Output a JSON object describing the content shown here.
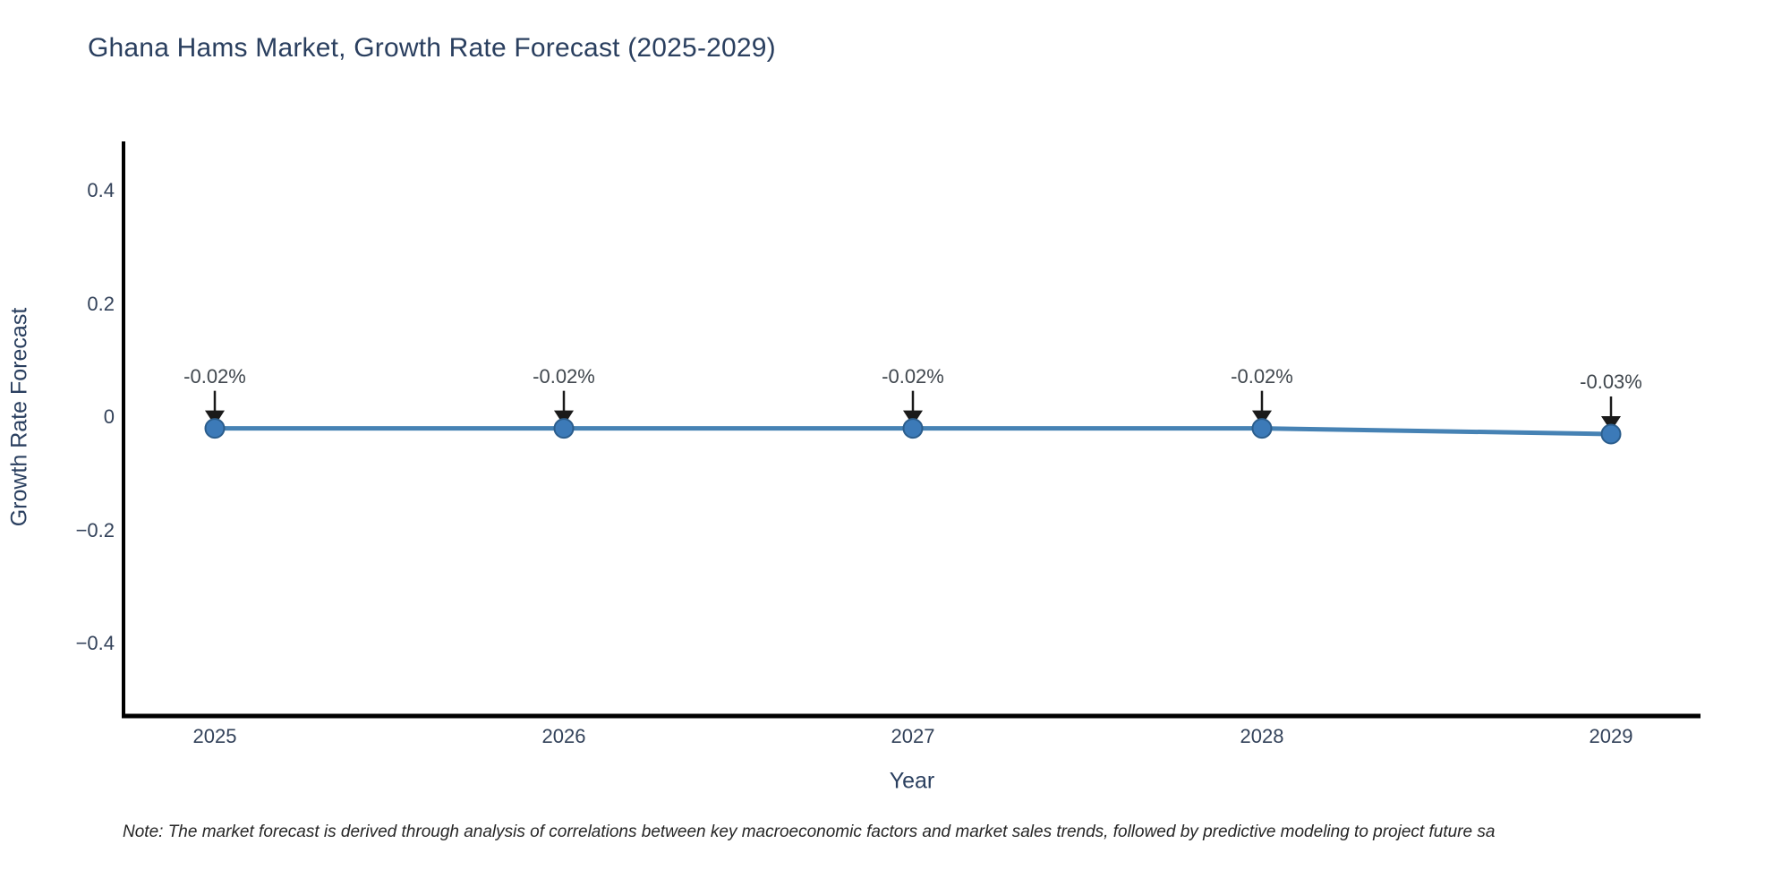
{
  "chart_data": {
    "type": "line",
    "title": "Ghana Hams Market, Growth Rate Forecast (2025-2029)",
    "xlabel": "Year",
    "ylabel": "Growth Rate Forecast",
    "x": [
      2025,
      2026,
      2027,
      2028,
      2029
    ],
    "categories": [
      "2025",
      "2026",
      "2027",
      "2028",
      "2029"
    ],
    "values": [
      -0.02,
      -0.02,
      -0.02,
      -0.02,
      -0.03
    ],
    "point_labels": [
      "-0.02%",
      "-0.02%",
      "-0.02%",
      "-0.02%",
      "-0.03%"
    ],
    "y_ticks": [
      0.4,
      0.2,
      0,
      -0.2,
      -0.4
    ],
    "y_tick_labels": [
      "0.4",
      "0.2",
      "0",
      "−0.2",
      "−0.4"
    ],
    "ylim": [
      -0.53,
      0.49
    ],
    "xlim": [
      2024.74,
      2029.26
    ],
    "grid": false,
    "legend": "none"
  },
  "note": {
    "text": "Note: The market forecast is derived through analysis of correlations between key macroeconomic factors and market sales trends, followed by predictive modeling to project future sa"
  },
  "colors": {
    "background": "#ffffff",
    "title_text": "#2a3f5f",
    "tick_text": "#33425a",
    "annotation_text": "#40474e",
    "note_text": "#262626",
    "axis_line": "#000000",
    "series_line": "#4682b4",
    "marker_fill": "#3c7ab8",
    "marker_edge": "#2b5d8c",
    "arrow": "#1a1a1a"
  }
}
